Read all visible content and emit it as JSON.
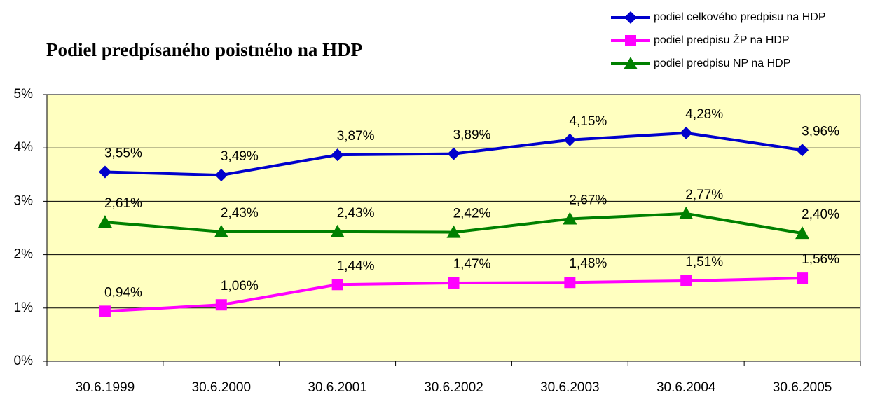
{
  "chart_data": {
    "type": "line",
    "title": "Podiel predpísaného poistného na HDP",
    "categories": [
      "30.6.1999",
      "30.6.2000",
      "30.6.2001",
      "30.6.2002",
      "30.6.2003",
      "30.6.2004",
      "30.6.2005"
    ],
    "series": [
      {
        "name": "podiel celkového predpisu na HDP",
        "color": "#0000cc",
        "marker": "diamond",
        "values": [
          3.55,
          3.49,
          3.87,
          3.89,
          4.15,
          4.28,
          3.96
        ],
        "value_labels": [
          "3,55%",
          "3,49%",
          "3,87%",
          "3,89%",
          "4,15%",
          "4,28%",
          "3,96%"
        ]
      },
      {
        "name": "podiel predpisu ŽP na HDP",
        "color": "#ff00ff",
        "marker": "square",
        "values": [
          0.94,
          1.06,
          1.44,
          1.47,
          1.48,
          1.51,
          1.56
        ],
        "value_labels": [
          "0,94%",
          "1,06%",
          "1,44%",
          "1,47%",
          "1,48%",
          "1,51%",
          "1,56%"
        ]
      },
      {
        "name": "podiel predpisu NP na HDP",
        "color": "#008000",
        "marker": "triangle",
        "values": [
          2.61,
          2.43,
          2.43,
          2.42,
          2.67,
          2.77,
          2.4
        ],
        "value_labels": [
          "2,61%",
          "2,43%",
          "2,43%",
          "2,42%",
          "2,67%",
          "2,77%",
          "2,40%"
        ]
      }
    ],
    "ylim": [
      0,
      5
    ],
    "yticks": [
      {
        "value": 0,
        "label": "0%"
      },
      {
        "value": 1,
        "label": "1%"
      },
      {
        "value": 2,
        "label": "2%"
      },
      {
        "value": 3,
        "label": "3%"
      },
      {
        "value": 4,
        "label": "4%"
      },
      {
        "value": 5,
        "label": "5%"
      }
    ],
    "grid": true,
    "plot_background": "#ffffc0",
    "legend": "top-right"
  }
}
